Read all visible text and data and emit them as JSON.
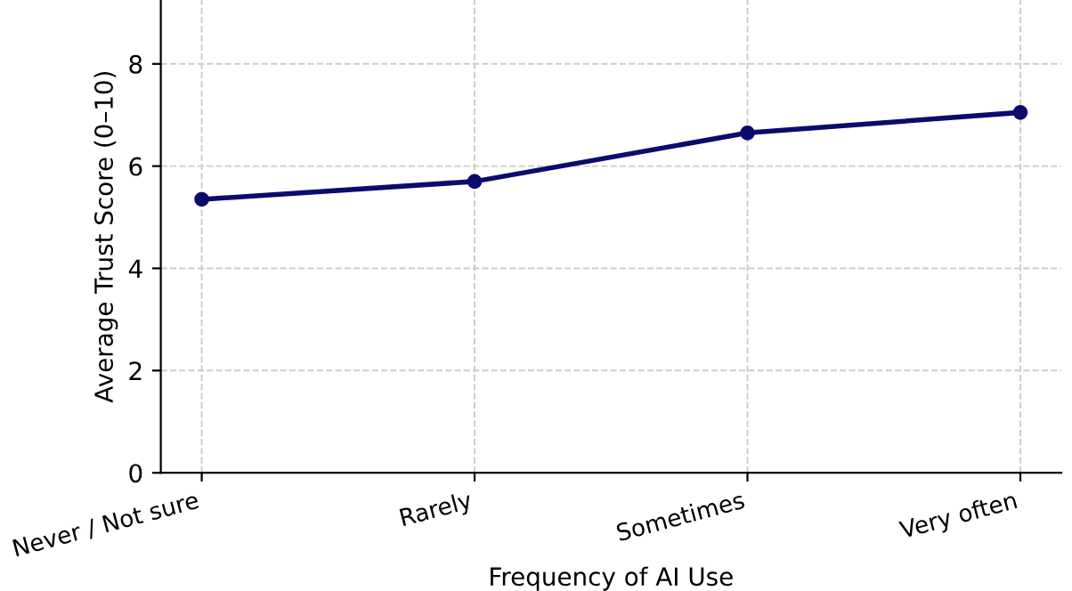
{
  "chart_data": {
    "type": "line",
    "xlabel": "Frequency of AI Use",
    "ylabel": "Average Trust Score (0–10)",
    "categories": [
      "Never / Not sure",
      "Rarely",
      "Sometimes",
      "Very often"
    ],
    "series": [
      {
        "color": "#0b0b6e",
        "values": [
          5.35,
          5.7,
          6.65,
          7.05
        ]
      }
    ],
    "ylim": [
      0,
      9.25
    ],
    "yticks": [
      0,
      2,
      4,
      6,
      8
    ],
    "grid": true,
    "marker": "circle",
    "line_style": "solid"
  }
}
